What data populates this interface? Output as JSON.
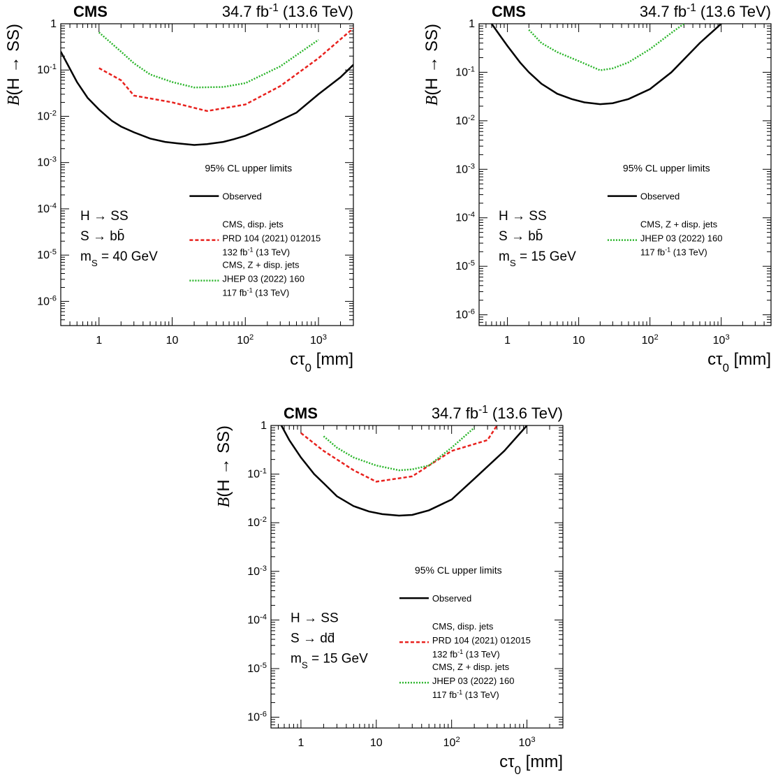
{
  "chart_data": [
    {
      "type": "line",
      "cms_label": "CMS",
      "lumi_label": "34.7 fb$-1$ (13.6 TeV)",
      "xlabel": "cτ0 [mm]",
      "ylabel": "B(H → SS)",
      "xscale": "log",
      "yscale": "log",
      "xlim": [
        0.3,
        3000
      ],
      "ylim": [
        3e-07,
        1
      ],
      "xtick_labels": [
        "1",
        "10",
        "10^2",
        "10^3"
      ],
      "ytick_labels": [
        "10^-6",
        "10^-5",
        "10^-4",
        "10^-3",
        "10^-2",
        "10^-1",
        "1"
      ],
      "legend_title": "95% CL upper limits",
      "legend_position": "center-right",
      "process_labels": [
        "H → SS",
        "S → bb̄",
        "mS = 40 GeV"
      ],
      "series": [
        {
          "name": "Observed",
          "color": "#000000",
          "style": "solid",
          "x": [
            0.3,
            0.5,
            0.7,
            1,
            1.5,
            2,
            3,
            5,
            8,
            12,
            20,
            30,
            50,
            70,
            100,
            200,
            500,
            1000,
            2000,
            3000
          ],
          "y": [
            0.25,
            0.055,
            0.025,
            0.014,
            0.008,
            0.006,
            0.0045,
            0.0033,
            0.0028,
            0.0026,
            0.0024,
            0.0025,
            0.0028,
            0.0032,
            0.0038,
            0.006,
            0.012,
            0.03,
            0.07,
            0.13
          ]
        },
        {
          "name": "CMS, disp. jets|PRD 104 (2021) 012015|132 fb$-1$ (13 TeV)",
          "color": "#e8211d",
          "style": "dashed",
          "x": [
            1,
            2,
            3,
            10,
            30,
            100,
            300,
            1000,
            3000
          ],
          "y": [
            0.11,
            0.06,
            0.028,
            0.02,
            0.013,
            0.018,
            0.045,
            0.18,
            0.8
          ]
        },
        {
          "name": "CMS, Z + disp. jets|JHEP 03 (2022) 160|117 fb$-1$ (13 TeV)",
          "color": "#2ab52a",
          "style": "dotted",
          "x": [
            1,
            2,
            3,
            5,
            10,
            20,
            50,
            100,
            300,
            1000
          ],
          "y": [
            0.65,
            0.25,
            0.14,
            0.08,
            0.055,
            0.042,
            0.043,
            0.052,
            0.12,
            0.45
          ]
        }
      ]
    },
    {
      "type": "line",
      "cms_label": "CMS",
      "lumi_label": "34.7 fb$-1$ (13.6 TeV)",
      "xlabel": "cτ0 [mm]",
      "ylabel": "B(H → SS)",
      "xscale": "log",
      "yscale": "log",
      "xlim": [
        0.4,
        5000
      ],
      "ylim": [
        6e-07,
        1
      ],
      "xtick_labels": [
        "1",
        "10",
        "10^2",
        "10^3"
      ],
      "ytick_labels": [
        "10^-6",
        "10^-5",
        "10^-4",
        "10^-3",
        "10^-2",
        "10^-1",
        "1"
      ],
      "legend_title": "95% CL upper limits",
      "legend_position": "center-right",
      "process_labels": [
        "H → SS",
        "S → bb̄",
        "mS = 15 GeV"
      ],
      "series": [
        {
          "name": "Observed",
          "color": "#000000",
          "style": "solid",
          "x": [
            0.6,
            0.8,
            1,
            1.5,
            2,
            3,
            5,
            8,
            12,
            20,
            30,
            50,
            100,
            200,
            500,
            1000
          ],
          "y": [
            1,
            0.55,
            0.35,
            0.16,
            0.1,
            0.058,
            0.036,
            0.028,
            0.024,
            0.022,
            0.023,
            0.028,
            0.045,
            0.1,
            0.4,
            1
          ]
        },
        {
          "name": "CMS, Z + disp. jets|JHEP 03 (2022) 160|117 fb$-1$ (13 TeV)",
          "color": "#2ab52a",
          "style": "dotted",
          "x": [
            2,
            3,
            5,
            10,
            20,
            30,
            50,
            100,
            200,
            300
          ],
          "y": [
            0.75,
            0.4,
            0.26,
            0.17,
            0.11,
            0.12,
            0.16,
            0.3,
            0.65,
            1
          ]
        }
      ]
    },
    {
      "type": "line",
      "cms_label": "CMS",
      "lumi_label": "34.7 fb$-1$ (13.6 TeV)",
      "xlabel": "cτ0 [mm]",
      "ylabel": "B(H → SS)",
      "xscale": "log",
      "yscale": "log",
      "xlim": [
        0.4,
        3000
      ],
      "ylim": [
        6e-07,
        1
      ],
      "xtick_labels": [
        "1",
        "10",
        "10^2",
        "10^3"
      ],
      "ytick_labels": [
        "10^-6",
        "10^-5",
        "10^-4",
        "10^-3",
        "10^-2",
        "10^-1",
        "1"
      ],
      "legend_title": "95% CL upper limits",
      "legend_position": "center-right",
      "process_labels": [
        "H → SS",
        "S → dd̄",
        "mS = 15 GeV"
      ],
      "series": [
        {
          "name": "Observed",
          "color": "#000000",
          "style": "solid",
          "x": [
            0.55,
            0.7,
            1,
            1.5,
            2,
            3,
            5,
            8,
            12,
            20,
            30,
            50,
            100,
            200,
            500,
            1000
          ],
          "y": [
            1,
            0.5,
            0.22,
            0.1,
            0.065,
            0.035,
            0.022,
            0.017,
            0.015,
            0.014,
            0.0145,
            0.018,
            0.03,
            0.08,
            0.3,
            1
          ]
        },
        {
          "name": "CMS, disp. jets|PRD 104 (2021) 012015|132 fb$-1$ (13 TeV)",
          "color": "#e8211d",
          "style": "dashed",
          "x": [
            1,
            2,
            3,
            5,
            10,
            30,
            100,
            300,
            400
          ],
          "y": [
            0.7,
            0.3,
            0.2,
            0.12,
            0.07,
            0.09,
            0.3,
            0.5,
            1
          ]
        },
        {
          "name": "CMS, Z + disp. jets|JHEP 03 (2022) 160|117 fb$-1$ (13 TeV)",
          "color": "#2ab52a",
          "style": "dotted",
          "x": [
            2,
            3,
            5,
            10,
            20,
            30,
            50,
            100,
            200
          ],
          "y": [
            0.6,
            0.35,
            0.22,
            0.15,
            0.12,
            0.125,
            0.15,
            0.35,
            0.9
          ]
        }
      ]
    }
  ]
}
